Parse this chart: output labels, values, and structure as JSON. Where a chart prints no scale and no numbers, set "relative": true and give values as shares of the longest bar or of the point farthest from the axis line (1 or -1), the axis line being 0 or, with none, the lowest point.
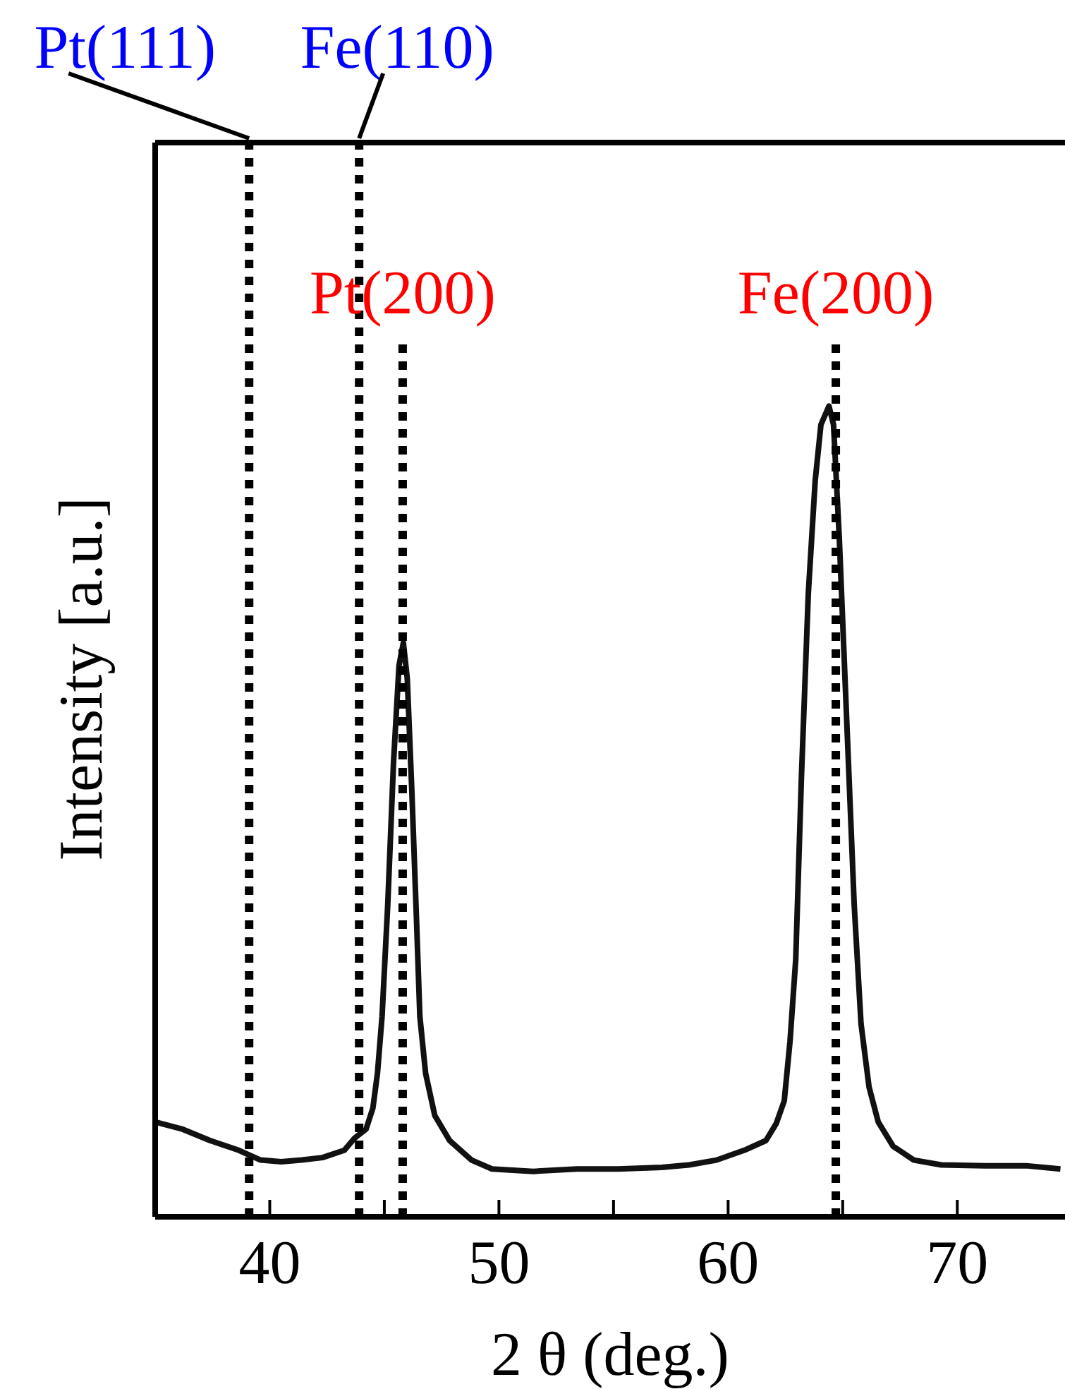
{
  "chart_data": {
    "type": "line",
    "xlabel": "2 θ (deg.)",
    "ylabel": "Intensity [a.u.]",
    "relative": true,
    "xlim": [
      35,
      74.7
    ],
    "xticks": [
      40,
      {
        "value": 45,
        "label": null
      },
      50,
      {
        "value": 55,
        "label": null
      },
      60,
      {
        "value": 65,
        "label": null
      },
      70
    ],
    "marker": "none",
    "line_style": "solid",
    "series": [
      {
        "color": "#111111",
        "x": [
          35.0,
          36.2,
          37.4,
          38.65,
          39.6,
          40.5,
          41.4,
          42.3,
          43.25,
          43.7,
          44.2,
          44.5,
          44.7,
          44.9,
          45.15,
          45.4,
          45.64,
          45.83,
          46.0,
          46.2,
          46.4,
          46.55,
          46.8,
          47.2,
          47.85,
          48.8,
          49.7,
          51.5,
          53.4,
          55.2,
          57.1,
          58.3,
          59.5,
          60.7,
          61.65,
          62.1,
          62.45,
          62.7,
          62.95,
          63.2,
          63.5,
          63.8,
          64.05,
          64.4,
          64.6,
          64.85,
          65.2,
          65.5,
          65.8,
          66.15,
          66.55,
          67.2,
          68.1,
          69.3,
          71.2,
          73.0,
          74.5
        ],
        "values": [
          0.117,
          0.108,
          0.094,
          0.082,
          0.07,
          0.068,
          0.07,
          0.073,
          0.082,
          0.097,
          0.108,
          0.134,
          0.177,
          0.247,
          0.386,
          0.56,
          0.68,
          0.708,
          0.664,
          0.525,
          0.369,
          0.247,
          0.177,
          0.125,
          0.094,
          0.07,
          0.059,
          0.056,
          0.059,
          0.059,
          0.061,
          0.064,
          0.07,
          0.082,
          0.094,
          0.115,
          0.143,
          0.216,
          0.317,
          0.543,
          0.769,
          0.908,
          0.977,
          1.0,
          0.977,
          0.838,
          0.595,
          0.386,
          0.238,
          0.16,
          0.117,
          0.087,
          0.07,
          0.064,
          0.063,
          0.063,
          0.059
        ]
      }
    ],
    "ref_lines": [
      {
        "axis": "x",
        "value": 39.1,
        "label": "Pt(111)",
        "color": "#000000",
        "line_style": "dotted"
      },
      {
        "axis": "x",
        "value": 43.9,
        "label": "Fe(110)",
        "color": "#000000",
        "line_style": "dotted"
      },
      {
        "axis": "x",
        "value": 45.8,
        "label": "Pt(200)",
        "color": "#000000",
        "line_style": "dotted"
      },
      {
        "axis": "x",
        "value": 64.7,
        "label": "Fe(200)",
        "color": "#000000",
        "line_style": "dotted"
      }
    ]
  }
}
